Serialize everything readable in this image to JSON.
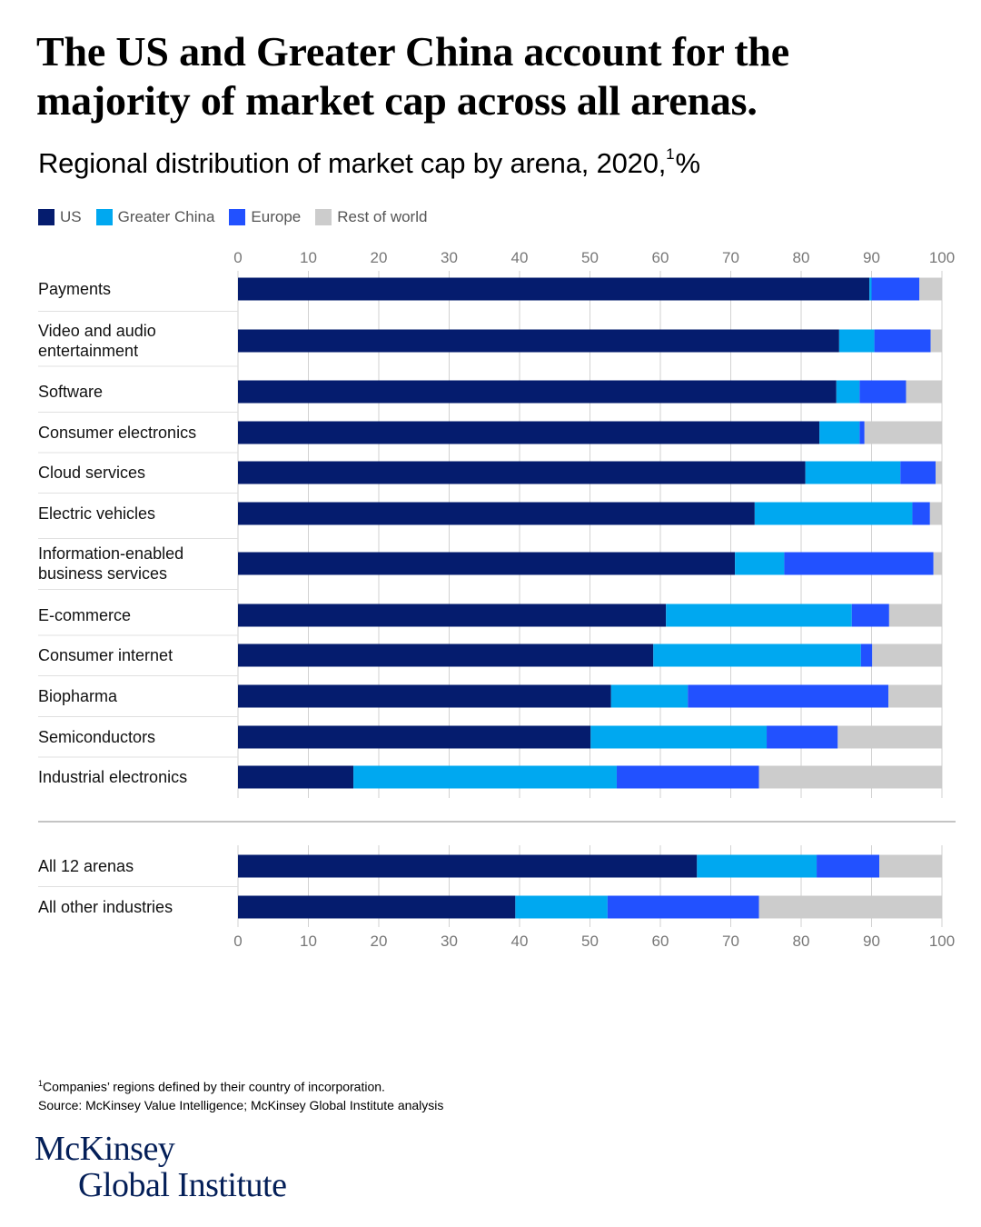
{
  "title": "The US and Greater China account for the majority of market cap across all arenas.",
  "subtitle": "Regional distribution of market cap by arena, 2020,",
  "subtitle_sup": "1",
  "subtitle_unit": "%",
  "legend": [
    {
      "label": "US",
      "color": "#051c6e"
    },
    {
      "label": "Greater China",
      "color": "#00a8f0"
    },
    {
      "label": "Europe",
      "color": "#2251ff"
    },
    {
      "label": "Rest of world",
      "color": "#cccccc"
    }
  ],
  "chart_data": {
    "type": "bar",
    "orientation": "horizontal",
    "stacked": true,
    "xlim": [
      0,
      100
    ],
    "ticks": [
      0,
      10,
      20,
      30,
      40,
      50,
      60,
      70,
      80,
      90,
      100
    ],
    "grid": true,
    "legend_position": "top-left",
    "series_colors": [
      "#051c6e",
      "#00a8f0",
      "#2251ff",
      "#cccccc"
    ],
    "groups": [
      {
        "categories": [
          [
            "Payments"
          ],
          [
            "Video and audio",
            "entertainment"
          ],
          [
            "Software"
          ],
          [
            "Consumer electronics"
          ],
          [
            "Cloud services"
          ],
          [
            "Electric vehicles"
          ],
          [
            "Information-enabled",
            "business services"
          ],
          [
            "E-commerce"
          ],
          [
            "Consumer internet"
          ],
          [
            "Biopharma"
          ],
          [
            "Semiconductors"
          ],
          [
            "Industrial electronics"
          ]
        ],
        "series": [
          {
            "name": "US",
            "values": [
              89.7,
              85.4,
              85.0,
              82.6,
              80.6,
              73.4,
              70.6,
              60.8,
              59.0,
              53.0,
              50.1,
              16.4
            ]
          },
          {
            "name": "Greater China",
            "values": [
              0.3,
              5.0,
              3.3,
              5.7,
              13.5,
              22.4,
              7.0,
              26.4,
              29.5,
              10.9,
              25.0,
              37.4
            ]
          },
          {
            "name": "Europe",
            "values": [
              6.8,
              8.0,
              6.6,
              0.7,
              5.0,
              2.5,
              21.2,
              5.3,
              1.6,
              28.5,
              10.1,
              20.2
            ]
          },
          {
            "name": "Rest of world",
            "values": [
              3.2,
              1.6,
              5.1,
              11.0,
              0.9,
              1.7,
              1.2,
              7.5,
              9.9,
              7.6,
              14.8,
              26.0
            ]
          }
        ]
      },
      {
        "categories": [
          [
            "All 12 arenas"
          ],
          [
            "All other industries"
          ]
        ],
        "series": [
          {
            "name": "US",
            "values": [
              65.2,
              39.4
            ]
          },
          {
            "name": "Greater China",
            "values": [
              17.0,
              13.1
            ]
          },
          {
            "name": "Europe",
            "values": [
              8.9,
              21.5
            ]
          },
          {
            "name": "Rest of world",
            "values": [
              8.9,
              26.0
            ]
          }
        ]
      }
    ]
  },
  "footnote": {
    "sup": "1",
    "note": "Companies’ regions defined by their country of incorporation.",
    "source": "Source: McKinsey Value Intelligence; McKinsey Global Institute analysis"
  },
  "logo": {
    "line1": "McKinsey",
    "line2": "Global Institute"
  }
}
